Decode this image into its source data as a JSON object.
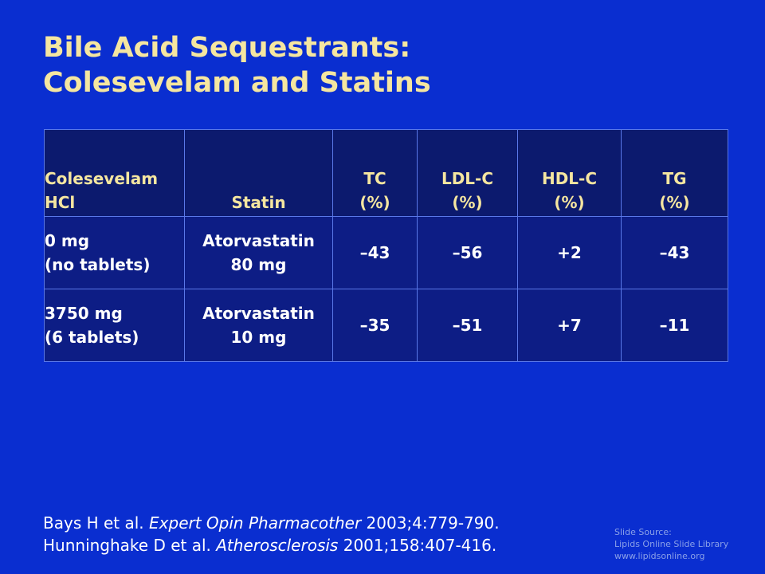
{
  "slide": {
    "title_line1": "Bile Acid Sequestrants:",
    "title_line2": "Colesevelam and Statins"
  },
  "table": {
    "headers": [
      [
        "Colesevelam",
        "HCl"
      ],
      [
        "Statin"
      ],
      [
        "TC",
        "(%)"
      ],
      [
        "LDL-C",
        "(%)"
      ],
      [
        "HDL-C",
        "(%)"
      ],
      [
        "TG",
        "(%)"
      ]
    ],
    "rows": [
      {
        "dose": [
          "0 mg",
          "(no tablets)"
        ],
        "statin": [
          "Atorvastatin",
          "80 mg"
        ],
        "tc": "–43",
        "ldl": "–56",
        "hdl": "+2",
        "tg": "–43"
      },
      {
        "dose": [
          "3750 mg",
          "(6 tablets)"
        ],
        "statin": [
          "Atorvastatin",
          "10 mg"
        ],
        "tc": "–35",
        "ldl": "–51",
        "hdl": "+7",
        "tg": "–11"
      }
    ]
  },
  "references": [
    {
      "authors": "Bays H et al. ",
      "journal": "Expert Opin Pharmacother",
      "details": " 2003;4:779-790."
    },
    {
      "authors": "Hunninghake D et al. ",
      "journal": "Atherosclerosis",
      "details": " 2001;158:407-416."
    }
  ],
  "source": {
    "line1": "Slide Source:",
    "line2": "Lipids Online Slide Library",
    "line3": "www.lipidsonline.org"
  },
  "colors": {
    "background": "#0a2ed0",
    "title": "#f5e6a0",
    "header_row": "#0c1a6e",
    "body_row": "#0d1d85"
  }
}
